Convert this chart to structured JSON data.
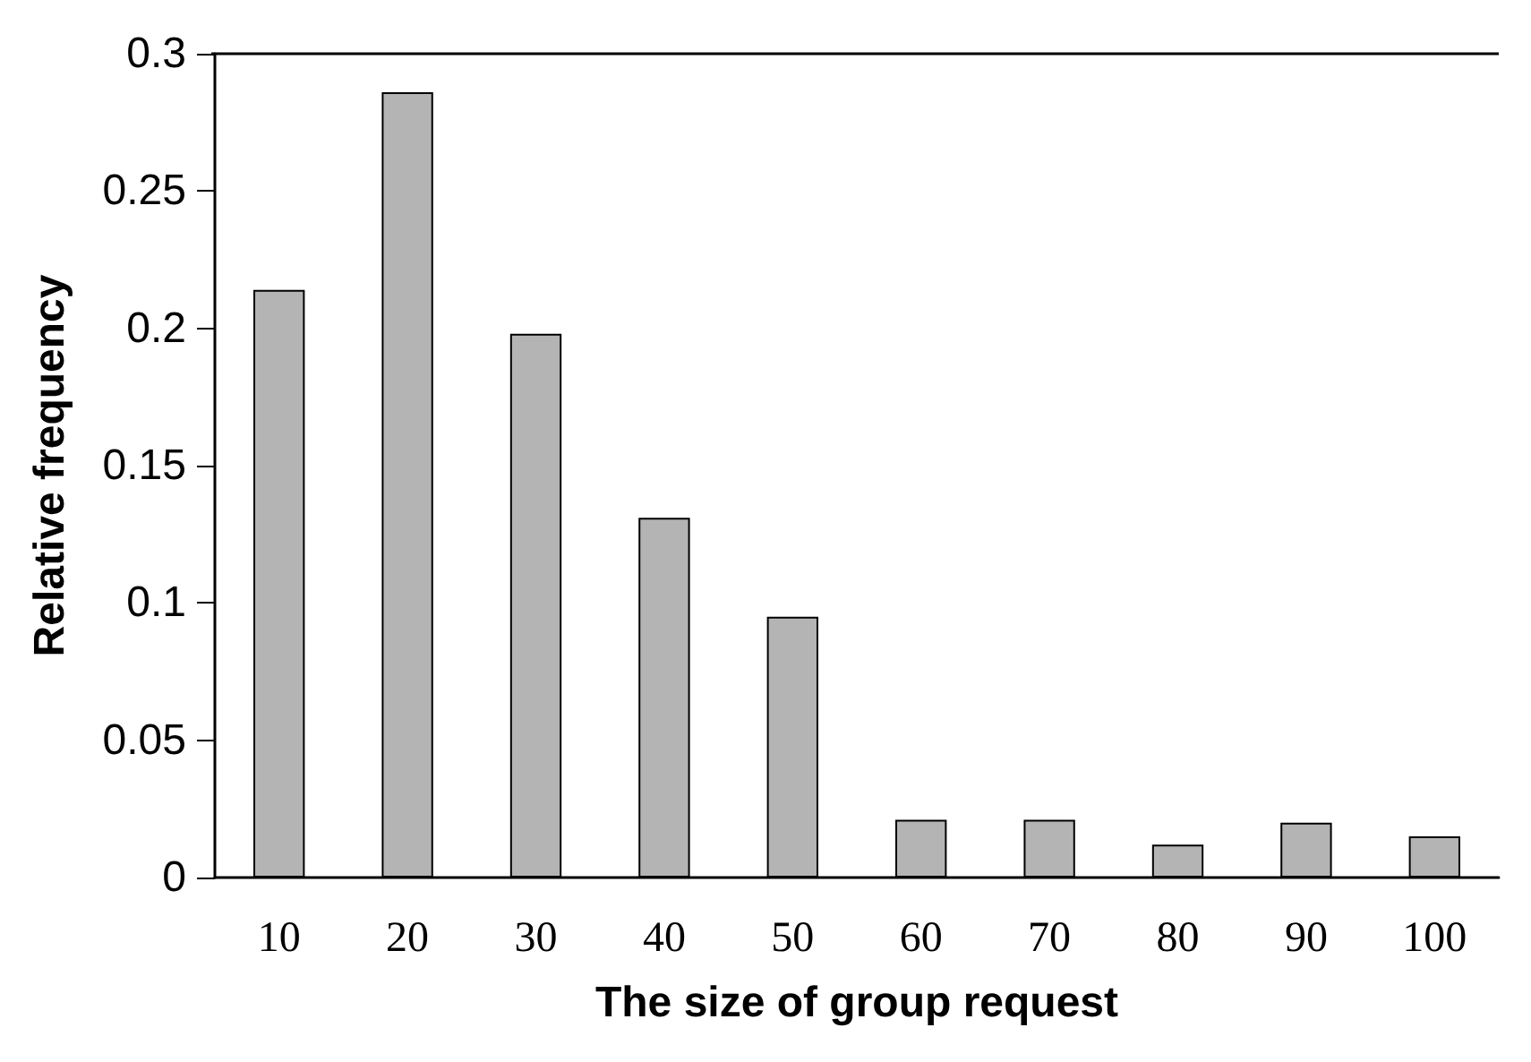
{
  "chart_data": {
    "type": "bar",
    "xlabel": "The size of group request",
    "ylabel": "Relative frequency",
    "categories": [
      "10",
      "20",
      "30",
      "40",
      "50",
      "60",
      "70",
      "80",
      "90",
      "100"
    ],
    "values": [
      0.214,
      0.286,
      0.198,
      0.131,
      0.095,
      0.021,
      0.021,
      0.012,
      0.02,
      0.015
    ],
    "color": "#b4b4b4",
    "ylim": [
      0,
      0.3
    ],
    "yticks": [
      0,
      0.05,
      0.1,
      0.15,
      0.2,
      0.25,
      0.3
    ],
    "grid": false
  }
}
